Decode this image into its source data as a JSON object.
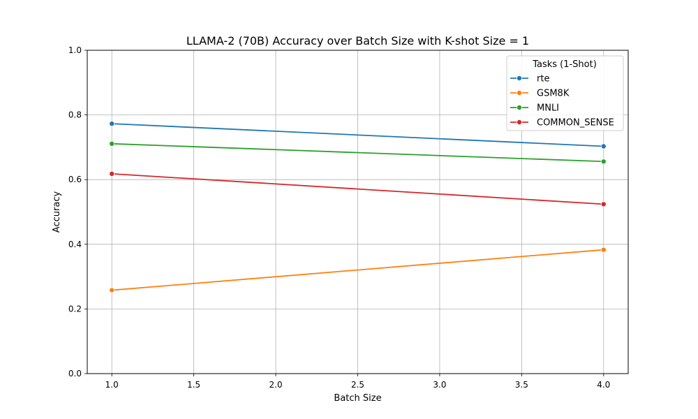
{
  "chart_data": {
    "type": "line",
    "title": "LLAMA-2 (70B) Accuracy over Batch Size with K-shot Size = 1",
    "xlabel": "Batch Size",
    "ylabel": "Accuracy",
    "xlim": [
      0.85,
      4.15
    ],
    "ylim": [
      0.0,
      1.0
    ],
    "xticks": [
      1.0,
      1.5,
      2.0,
      2.5,
      3.0,
      3.5,
      4.0
    ],
    "xtick_labels": [
      "1.0",
      "1.5",
      "2.0",
      "2.5",
      "3.0",
      "3.5",
      "4.0"
    ],
    "yticks": [
      0.0,
      0.2,
      0.4,
      0.6,
      0.8,
      1.0
    ],
    "ytick_labels": [
      "0.0",
      "0.2",
      "0.4",
      "0.6",
      "0.8",
      "1.0"
    ],
    "grid": true,
    "legend": {
      "title": "Tasks (1-Shot)",
      "placement": "top-right"
    },
    "series": [
      {
        "name": "rte",
        "color": "#1f77b4",
        "x": [
          1,
          4
        ],
        "y": [
          0.773,
          0.703
        ]
      },
      {
        "name": "GSM8K",
        "color": "#ff7f0e",
        "x": [
          1,
          4
        ],
        "y": [
          0.258,
          0.383
        ]
      },
      {
        "name": "MNLI",
        "color": "#2ca02c",
        "x": [
          1,
          4
        ],
        "y": [
          0.711,
          0.656
        ]
      },
      {
        "name": "COMMON_SENSE",
        "color": "#d62728",
        "x": [
          1,
          4
        ],
        "y": [
          0.618,
          0.524
        ]
      }
    ]
  }
}
